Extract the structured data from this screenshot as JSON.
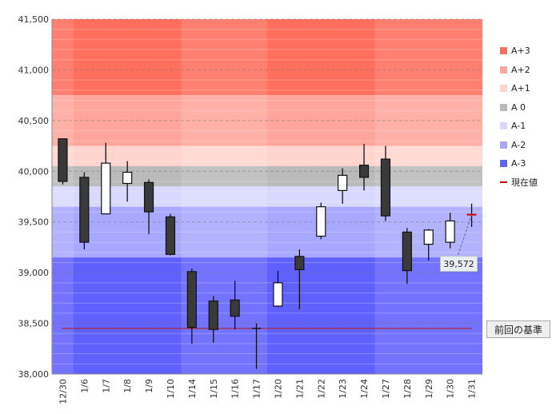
{
  "colors": {
    "zone_a_plus_3": "#ff6f5e",
    "zone_a_plus_2": "#ffa59b",
    "zone_a_plus_1": "#ffd4cf",
    "zone_a_0": "#bababa",
    "zone_a_minus_1": "#d9d9ff",
    "zone_a_minus_2": "#a8a8ff",
    "zone_a_minus_3": "#6060ff",
    "current_price": "#cc0000",
    "reference_line": "#b02020",
    "up_candle": "#ffffff",
    "down_candle": "#3a3a3a"
  },
  "legend": [
    {
      "label": "A+3",
      "color_key": "zone_a_plus_3"
    },
    {
      "label": "A+2",
      "color_key": "zone_a_plus_2"
    },
    {
      "label": "A+1",
      "color_key": "zone_a_plus_1"
    },
    {
      "label": "A 0",
      "color_key": "zone_a_0"
    },
    {
      "label": "A-1",
      "color_key": "zone_a_minus_1"
    },
    {
      "label": "A-2",
      "color_key": "zone_a_minus_2"
    },
    {
      "label": "A-3",
      "color_key": "zone_a_minus_3"
    },
    {
      "label": "現在値",
      "color_key": "current_price",
      "line": true
    }
  ],
  "reference_label": "前回の基準",
  "current_label": "39,572",
  "chart_data": {
    "type": "candlestick",
    "ylim": [
      38000,
      41500
    ],
    "yticks": [
      "38,000",
      "38,500",
      "39,000",
      "39,500",
      "40,000",
      "40,500",
      "41,000",
      "41,500"
    ],
    "ytick_values": [
      38000,
      38500,
      39000,
      39500,
      40000,
      40500,
      41000,
      41500
    ],
    "categories": [
      "12/30",
      "1/6",
      "1/7",
      "1/8",
      "1/9",
      "1/10",
      "1/14",
      "1/15",
      "1/16",
      "1/17",
      "1/20",
      "1/21",
      "1/22",
      "1/23",
      "1/24",
      "1/27",
      "1/28",
      "1/29",
      "1/30",
      "1/31"
    ],
    "candles": [
      {
        "open": 40320,
        "high": 40320,
        "low": 39870,
        "close": 39900
      },
      {
        "open": 39940,
        "high": 39990,
        "low": 39230,
        "close": 39300
      },
      {
        "open": 39580,
        "high": 40280,
        "low": 39580,
        "close": 40080
      },
      {
        "open": 39880,
        "high": 40100,
        "low": 39700,
        "close": 39990
      },
      {
        "open": 39890,
        "high": 39920,
        "low": 39380,
        "close": 39600
      },
      {
        "open": 39550,
        "high": 39580,
        "low": 39170,
        "close": 39180
      },
      {
        "open": 39010,
        "high": 39040,
        "low": 38300,
        "close": 38460
      },
      {
        "open": 38720,
        "high": 38770,
        "low": 38310,
        "close": 38440
      },
      {
        "open": 38730,
        "high": 38920,
        "low": 38440,
        "close": 38570
      },
      {
        "open": 38450,
        "high": 38500,
        "low": 38050,
        "close": 38440
      },
      {
        "open": 38670,
        "high": 39020,
        "low": 38660,
        "close": 38900
      },
      {
        "open": 39160,
        "high": 39230,
        "low": 38640,
        "close": 39030
      },
      {
        "open": 39360,
        "high": 39690,
        "low": 39330,
        "close": 39650
      },
      {
        "open": 39810,
        "high": 40030,
        "low": 39680,
        "close": 39960
      },
      {
        "open": 40060,
        "high": 40270,
        "low": 39810,
        "close": 39940
      },
      {
        "open": 40120,
        "high": 40250,
        "low": 39510,
        "close": 39560
      },
      {
        "open": 39400,
        "high": 39440,
        "low": 38890,
        "close": 39020
      },
      {
        "open": 39280,
        "high": 39430,
        "low": 39120,
        "close": 39420
      },
      {
        "open": 39300,
        "high": 39590,
        "low": 39240,
        "close": 39510
      },
      {
        "open": 39572,
        "high": 39680,
        "low": 39450,
        "close": 39572
      }
    ],
    "zones": [
      {
        "name": "A+3",
        "from": 40750,
        "to": 41500
      },
      {
        "name": "A+2",
        "from": 40250,
        "to": 40750
      },
      {
        "name": "A+1",
        "from": 40050,
        "to": 40250
      },
      {
        "name": "A 0",
        "from": 39850,
        "to": 40050
      },
      {
        "name": "A-1",
        "from": 39650,
        "to": 39850
      },
      {
        "name": "A-2",
        "from": 39150,
        "to": 39650
      },
      {
        "name": "A-3",
        "from": 38000,
        "to": 39150
      }
    ],
    "reference_value": 38450,
    "current_value": 39572,
    "grid": true
  }
}
